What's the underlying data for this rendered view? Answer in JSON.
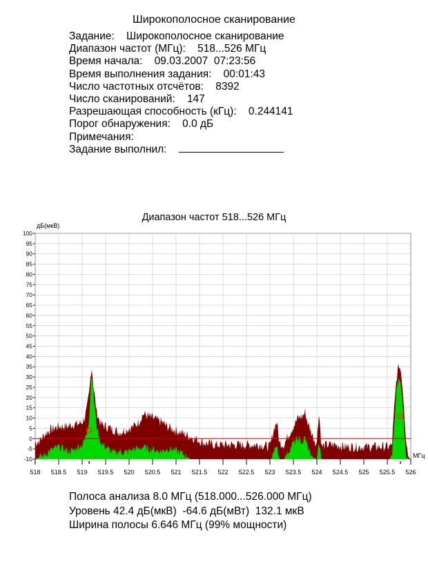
{
  "header": {
    "title": "Широкополосное сканирование"
  },
  "info": {
    "task_label": "Задание:",
    "task_value": "Широкополосное сканирование",
    "freq_range_label": "Диапазон частот (МГц):",
    "freq_range_value": "518...526 МГц",
    "start_time_label": "Время начала:",
    "start_time_value": "09.03.2007  07:23:56",
    "duration_label": "Время выполнения задания:",
    "duration_value": "00:01:43",
    "samples_label": "Число частотных отсчётов:",
    "samples_value": "8392",
    "scans_label": "Число сканирований:",
    "scans_value": "147",
    "resolution_label": "Разрешающая способность (кГц):",
    "resolution_value": "0.244141",
    "threshold_label": "Порог обнаружения:",
    "threshold_value": "0.0 дБ",
    "notes_label": "Примечания:",
    "executor_label": "Задание выполнил:"
  },
  "chart_data": {
    "type": "area",
    "title": "Диапазон частот 518...526 МГц",
    "ylabel": "дБ(мкВ)",
    "xlabel": "МГц",
    "xlim": [
      518,
      526
    ],
    "ylim": [
      -10,
      100
    ],
    "yticks": [
      "-10",
      "-5",
      "0",
      "5",
      "10",
      "15",
      "20",
      "25",
      "30",
      "35",
      "40",
      "45",
      "50",
      "55",
      "60",
      "65",
      "70",
      "75",
      "80",
      "85",
      "90",
      "95",
      "100"
    ],
    "xticks": [
      "518",
      "518.5",
      "519",
      "519.5",
      "520",
      "520.5",
      "521",
      "521.5",
      "522",
      "522.5",
      "523",
      "523.5",
      "524",
      "524.5",
      "525",
      "525.5",
      "526"
    ],
    "threshold_db": 0,
    "grid": true,
    "markers": [
      {
        "x": 519.15,
        "y": 4
      },
      {
        "x": 525.78,
        "y": 11
      }
    ],
    "series": [
      {
        "color": "#800000",
        "x": [
          518.0,
          518.1,
          518.2,
          518.3,
          518.4,
          518.5,
          518.6,
          518.7,
          518.8,
          518.9,
          519.0,
          519.05,
          519.1,
          519.15,
          519.2,
          519.25,
          519.3,
          519.35,
          519.4,
          519.5,
          519.6,
          519.7,
          519.8,
          519.9,
          520.0,
          520.1,
          520.2,
          520.3,
          520.4,
          520.5,
          520.6,
          520.7,
          520.8,
          520.9,
          521.0,
          521.1,
          521.2,
          521.3,
          521.4,
          521.5,
          521.6,
          521.8,
          522.0,
          522.2,
          522.4,
          522.6,
          522.8,
          523.0,
          523.1,
          523.15,
          523.2,
          523.3,
          523.4,
          523.5,
          523.6,
          523.7,
          523.75,
          523.8,
          523.9,
          524.0,
          524.02,
          524.05,
          524.1,
          524.2,
          524.4,
          524.6,
          524.8,
          525.0,
          525.2,
          525.4,
          525.55,
          525.6,
          525.65,
          525.7,
          525.75,
          525.8,
          525.85,
          525.9,
          525.95,
          526.0
        ],
        "values": [
          -2,
          -1,
          2,
          4,
          5,
          6,
          6,
          6,
          7,
          7,
          8,
          10,
          14,
          22,
          36,
          24,
          14,
          10,
          7,
          6,
          5,
          4,
          3,
          4,
          5,
          6,
          8,
          12,
          11,
          10,
          9,
          8,
          6,
          5,
          4,
          3,
          2,
          1,
          0,
          -1,
          -2,
          -3,
          -3,
          -3,
          -3,
          -3,
          -3,
          -4,
          6,
          8,
          -2,
          -3,
          2,
          6,
          10,
          11,
          13,
          8,
          2,
          -3,
          8,
          12,
          -4,
          -3,
          -3,
          -4,
          -4,
          -4,
          -4,
          -4,
          -4,
          -3,
          15,
          30,
          36,
          32,
          18,
          0,
          -9,
          -10
        ]
      },
      {
        "color": "#00d800",
        "x": [
          518.0,
          518.1,
          518.2,
          518.3,
          518.4,
          518.5,
          518.6,
          518.7,
          518.8,
          518.9,
          519.0,
          519.05,
          519.1,
          519.15,
          519.2,
          519.25,
          519.3,
          519.35,
          519.4,
          519.5,
          519.6,
          519.7,
          519.8,
          519.9,
          520.0,
          520.1,
          520.2,
          520.3,
          520.4,
          520.5,
          520.6,
          520.7,
          520.8,
          520.9,
          521.0,
          521.1,
          521.2,
          521.3,
          521.4,
          521.5,
          521.6,
          521.8,
          522.0,
          522.2,
          522.4,
          522.6,
          522.8,
          523.0,
          523.1,
          523.15,
          523.2,
          523.3,
          523.4,
          523.5,
          523.6,
          523.7,
          523.75,
          523.8,
          523.9,
          524.0,
          524.02,
          524.05,
          524.1,
          524.2,
          524.4,
          524.6,
          524.8,
          525.0,
          525.2,
          525.4,
          525.55,
          525.6,
          525.65,
          525.7,
          525.75,
          525.8,
          525.85,
          525.9,
          525.95,
          526.0
        ],
        "values": [
          -10,
          -9,
          -8,
          -6,
          -5,
          -4,
          -5,
          -6,
          -6,
          -4,
          -3,
          -1,
          3,
          10,
          33,
          20,
          8,
          2,
          -2,
          -4,
          -6,
          -7,
          -6,
          -7,
          -6,
          -5,
          -5,
          -4,
          -5,
          -5,
          -6,
          -6,
          -5,
          -5,
          -6,
          -7,
          -8,
          -10,
          -10,
          -10,
          -10,
          -10,
          -10,
          -10,
          -10,
          -10,
          -10,
          -10,
          -6,
          -2,
          -10,
          -10,
          -6,
          -2,
          0,
          -2,
          1,
          -4,
          -9,
          -10,
          -6,
          -2,
          -10,
          -10,
          -10,
          -10,
          -10,
          -10,
          -10,
          -10,
          -10,
          -8,
          8,
          24,
          29,
          24,
          8,
          -8,
          -10,
          -10
        ]
      }
    ]
  },
  "footer": {
    "bandwidth_line": "Полоса анализа 8.0 МГц (518.000...526.000 МГц)",
    "level_line": "Уровень 42.4 дБ(мкВ)  -64.6 дБ(мВт)  132.1 мкВ",
    "occupied_bw_line": "Ширина полосы 6.646 МГц (99% мощности)"
  }
}
